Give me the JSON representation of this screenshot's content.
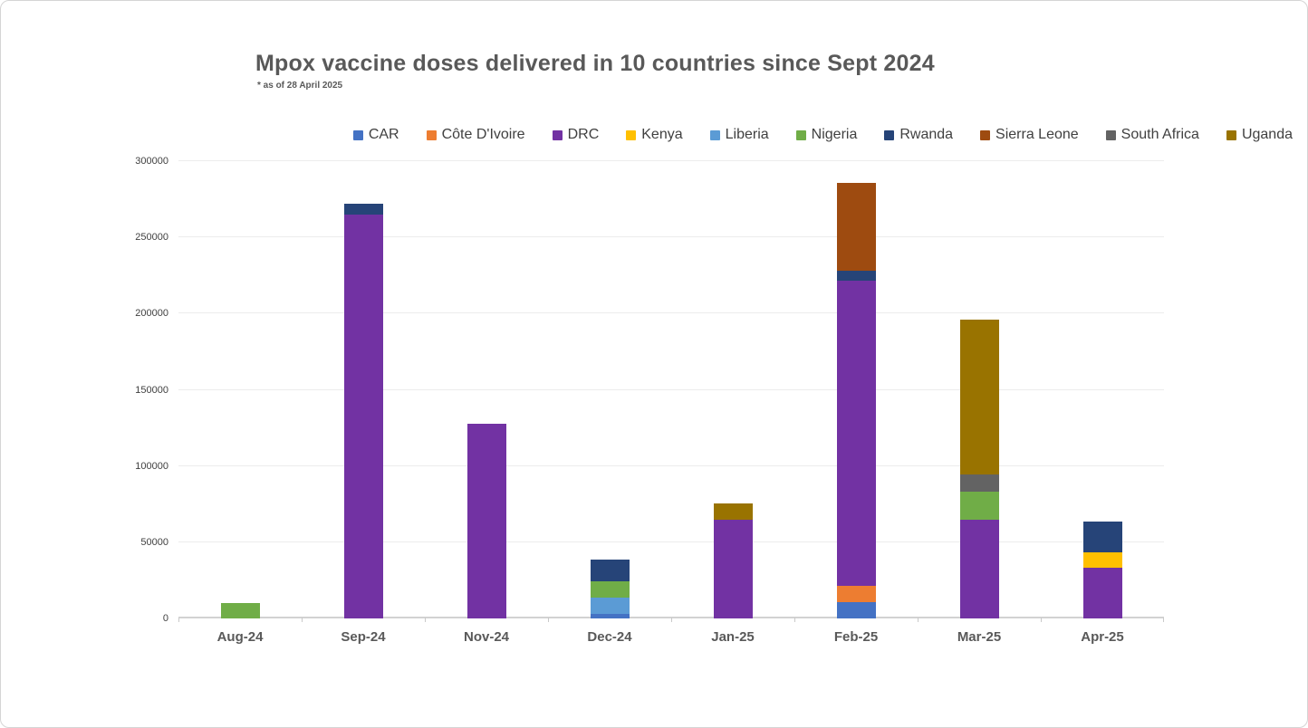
{
  "chart_data": {
    "type": "bar",
    "stacked": true,
    "title": "Mpox vaccine doses delivered in 10 countries since Sept 2024",
    "subtitle": "* as of 28 April 2025",
    "xlabel": "",
    "ylabel": "",
    "ylim": [
      0,
      300000
    ],
    "ytick_step": 50000,
    "grid": true,
    "legend_position": "top",
    "categories": [
      "Aug-24",
      "Sep-24",
      "Nov-24",
      "Dec-24",
      "Jan-25",
      "Feb-25",
      "Mar-25",
      "Apr-25"
    ],
    "series": [
      {
        "name": "CAR",
        "color": "#4472C4",
        "values": [
          0,
          0,
          0,
          3000,
          0,
          10500,
          0,
          0
        ]
      },
      {
        "name": "Côte D'Ivoire",
        "color": "#ED7D31",
        "values": [
          0,
          0,
          0,
          0,
          0,
          11000,
          0,
          0
        ]
      },
      {
        "name": "DRC",
        "color": "#7232A3",
        "values": [
          0,
          265000,
          128000,
          0,
          65000,
          200000,
          64500,
          33000
        ]
      },
      {
        "name": "Kenya",
        "color": "#FFC000",
        "values": [
          0,
          0,
          0,
          0,
          0,
          0,
          0,
          10500
        ]
      },
      {
        "name": "Liberia",
        "color": "#5B9BD5",
        "values": [
          0,
          0,
          0,
          10500,
          0,
          0,
          0,
          0
        ]
      },
      {
        "name": "Nigeria",
        "color": "#70AD47",
        "values": [
          10000,
          0,
          0,
          11000,
          0,
          0,
          18500,
          0
        ]
      },
      {
        "name": "Rwanda",
        "color": "#264478",
        "values": [
          0,
          7000,
          0,
          14000,
          0,
          6500,
          0,
          20000
        ]
      },
      {
        "name": "Sierra Leone",
        "color": "#9E4B10",
        "values": [
          0,
          0,
          0,
          0,
          0,
          58000,
          0,
          0
        ]
      },
      {
        "name": "South Africa",
        "color": "#636363",
        "values": [
          0,
          0,
          0,
          0,
          0,
          0,
          11500,
          0
        ]
      },
      {
        "name": "Uganda",
        "color": "#997300",
        "values": [
          0,
          0,
          0,
          0,
          10500,
          0,
          101500,
          0
        ]
      }
    ],
    "totals": [
      10000,
      272000,
      128000,
      38500,
      75500,
      286000,
      196000,
      63500
    ]
  }
}
